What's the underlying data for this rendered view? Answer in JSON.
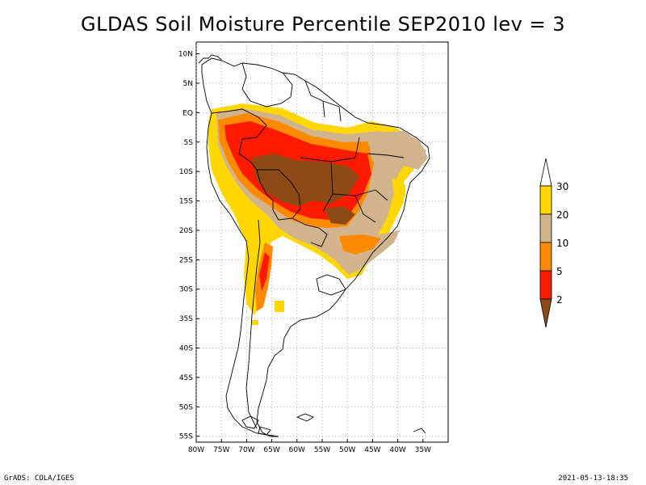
{
  "title": "GLDAS Soil Moisture Percentile SEP2010 lev = 3",
  "footer": {
    "left": "GrADS: COLA/IGES",
    "right": "2021-05-13-18:35"
  },
  "map": {
    "lon_range": [
      -80,
      -30
    ],
    "lat_range": [
      -56,
      12
    ],
    "lon_ticks": [
      {
        "value": -80,
        "label": "80W"
      },
      {
        "value": -75,
        "label": "75W"
      },
      {
        "value": -70,
        "label": "70W"
      },
      {
        "value": -65,
        "label": "65W"
      },
      {
        "value": -60,
        "label": "60W"
      },
      {
        "value": -55,
        "label": "55W"
      },
      {
        "value": -50,
        "label": "50W"
      },
      {
        "value": -45,
        "label": "45W"
      },
      {
        "value": -40,
        "label": "40W"
      },
      {
        "value": -35,
        "label": "35W"
      }
    ],
    "lat_ticks": [
      {
        "value": 10,
        "label": "10N"
      },
      {
        "value": 5,
        "label": "5N"
      },
      {
        "value": 0,
        "label": "EQ"
      },
      {
        "value": -5,
        "label": "5S"
      },
      {
        "value": -10,
        "label": "10S"
      },
      {
        "value": -15,
        "label": "15S"
      },
      {
        "value": -20,
        "label": "20S"
      },
      {
        "value": -25,
        "label": "25S"
      },
      {
        "value": -30,
        "label": "30S"
      },
      {
        "value": -35,
        "label": "35S"
      },
      {
        "value": -40,
        "label": "40S"
      },
      {
        "value": -45,
        "label": "45S"
      },
      {
        "value": -50,
        "label": "50S"
      },
      {
        "value": -55,
        "label": "55S"
      }
    ],
    "grid": "dotted"
  },
  "colorbar": {
    "labels": [
      "30",
      "20",
      "10",
      "5",
      "2"
    ],
    "colors": {
      "below_2": "#8c4a14",
      "2_5": "#ff1a00",
      "5_10": "#ff8a00",
      "10_20": "#d2b48c",
      "20_30": "#ffd700",
      "above_30": "#ffffff"
    }
  },
  "regions": [
    {
      "name": "northwest-amazon-edge",
      "class": "20_30"
    },
    {
      "name": "central-amazon",
      "class": "5_10"
    },
    {
      "name": "central-core",
      "class": "2_5"
    },
    {
      "name": "central-brazil-dry",
      "class": "below_2"
    },
    {
      "name": "northeast-brazil",
      "class": "10_20"
    },
    {
      "name": "southeast-brazil",
      "class": "10_20"
    },
    {
      "name": "andes-argentina",
      "class": "5_10"
    }
  ]
}
